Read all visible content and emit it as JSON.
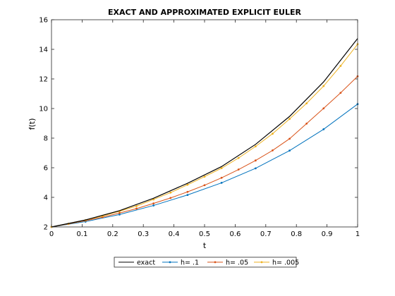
{
  "chart_data": {
    "type": "line",
    "title": "EXACT AND APPROXIMATED EXPLICIT EULER",
    "xlabel": "t",
    "ylabel": "f(t)",
    "xlim": [
      0,
      1
    ],
    "ylim": [
      2,
      16
    ],
    "xticks": [
      0,
      0.1,
      0.2,
      0.3,
      0.4,
      0.5,
      0.6,
      0.7,
      0.8,
      0.9,
      1
    ],
    "xtick_labels": [
      "0",
      "0.1",
      "0.2",
      "0.3",
      "0.4",
      "0.5",
      "0.6",
      "0.7",
      "0.8",
      "0.9",
      "1"
    ],
    "yticks": [
      2,
      4,
      6,
      8,
      10,
      12,
      14,
      16
    ],
    "ytick_labels": [
      "2",
      "4",
      "6",
      "8",
      "10",
      "12",
      "14",
      "16"
    ],
    "grid": false,
    "legend_position": "bottom-outside",
    "series": [
      {
        "name": "exact",
        "color": "#000000",
        "marker": "none",
        "x": [
          0,
          0.1111,
          0.2222,
          0.3333,
          0.4444,
          0.5556,
          0.6667,
          0.7778,
          0.8889,
          1.0
        ],
        "y": [
          2.0,
          2.47,
          3.1,
          3.94,
          4.95,
          6.08,
          7.58,
          9.47,
          11.8,
          14.73
        ]
      },
      {
        "name": "h= .1",
        "color": "#0072BD",
        "marker": "dot",
        "x": [
          0,
          0.1111,
          0.2222,
          0.3333,
          0.4444,
          0.5556,
          0.6667,
          0.7778,
          0.8889,
          1.0
        ],
        "y": [
          2.0,
          2.36,
          2.84,
          3.45,
          4.16,
          4.98,
          5.96,
          7.16,
          8.6,
          10.3
        ]
      },
      {
        "name": "h= .05",
        "color": "#D95319",
        "marker": "dot",
        "x": [
          0,
          0.0556,
          0.1111,
          0.1667,
          0.2222,
          0.2778,
          0.3333,
          0.3889,
          0.4444,
          0.5,
          0.5556,
          0.6111,
          0.6667,
          0.7222,
          0.7778,
          0.8333,
          0.8889,
          0.9444,
          1.0
        ],
        "y": [
          2.0,
          2.2,
          2.42,
          2.66,
          2.94,
          3.24,
          3.59,
          3.96,
          4.37,
          4.82,
          5.32,
          5.88,
          6.49,
          7.17,
          7.96,
          8.98,
          10.01,
          11.06,
          12.18
        ]
      },
      {
        "name": "h= .005",
        "color": "#EDB120",
        "marker": "dot",
        "x": [
          0,
          0.0556,
          0.1111,
          0.1667,
          0.2222,
          0.2778,
          0.3333,
          0.3889,
          0.4444,
          0.5,
          0.5556,
          0.6111,
          0.6667,
          0.7222,
          0.7778,
          0.8333,
          0.8889,
          0.9444,
          1.0
        ],
        "y": [
          2.0,
          2.22,
          2.46,
          2.74,
          3.06,
          3.41,
          3.86,
          4.32,
          4.85,
          5.4,
          5.97,
          6.66,
          7.44,
          8.3,
          9.3,
          10.35,
          11.52,
          12.88,
          14.35
        ]
      }
    ]
  }
}
